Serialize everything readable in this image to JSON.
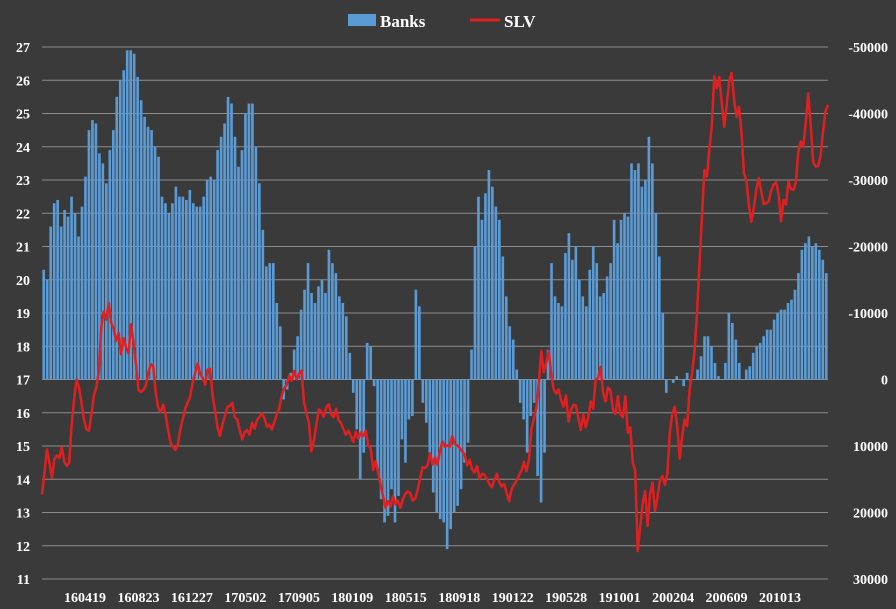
{
  "chart_data": {
    "type": "bar+line",
    "title": "",
    "legend": {
      "placement": "top-center",
      "entries": [
        "Banks",
        "SLV"
      ]
    },
    "grid": true,
    "x_tick_labels": [
      "160419",
      "160823",
      "161227",
      "170502",
      "170905",
      "180109",
      "180515",
      "180918",
      "190122",
      "190528",
      "191001",
      "200204",
      "200609",
      "201013"
    ],
    "left_axis": {
      "min": 11,
      "max": 27,
      "ticks": [
        "11",
        "12",
        "13",
        "14",
        "15",
        "16",
        "17",
        "18",
        "19",
        "20",
        "21",
        "22",
        "23",
        "24",
        "25",
        "26",
        "27"
      ],
      "baseline": 17
    },
    "right_axis": {
      "min": 30000,
      "max": -50000,
      "inverted": true,
      "ticks": [
        "-50000",
        "-40000",
        "-30000",
        "-20000",
        "-10000",
        "0",
        "10000",
        "20000",
        "30000"
      ]
    },
    "series": [
      {
        "name": "Banks",
        "axis": "left",
        "kind": "bar",
        "color": "#5b9bd5",
        "values": [
          20.3,
          20.0,
          21.6,
          22.3,
          22.4,
          21.6,
          22.1,
          21.9,
          22.5,
          22.0,
          21.3,
          22.2,
          23.1,
          24.5,
          24.8,
          24.7,
          23.8,
          23.5,
          22.9,
          23.9,
          24.5,
          25.5,
          26.0,
          26.3,
          26.9,
          26.9,
          26.8,
          26.1,
          25.4,
          24.9,
          24.6,
          24.5,
          24.0,
          23.7,
          22.5,
          22.3,
          22.0,
          22.3,
          22.8,
          22.5,
          22.5,
          22.4,
          22.7,
          22.3,
          22.2,
          22.2,
          22.5,
          23.0,
          23.1,
          23.0,
          23.9,
          24.3,
          24.7,
          25.5,
          25.3,
          24.3,
          23.4,
          23.9,
          25.0,
          25.3,
          25.3,
          24.0,
          22.9,
          21.5,
          20.4,
          20.5,
          20.5,
          19.3,
          18.6,
          16.4,
          16.7,
          17.2,
          17.9,
          18.3,
          19.1,
          19.7,
          20.5,
          19.6,
          19.3,
          19.8,
          20.0,
          19.6,
          20.9,
          20.5,
          20.2,
          19.5,
          19.3,
          18.9,
          17.8,
          16.6,
          15.5,
          14.0,
          14.8,
          18.1,
          18.0,
          16.8,
          14.3,
          13.4,
          12.7,
          12.9,
          13.7,
          12.7,
          13.5,
          15.2,
          14.5,
          15.8,
          15.9,
          19.7,
          19.2,
          16.3,
          15.7,
          14.8,
          13.6,
          13.0,
          12.8,
          12.7,
          11.9,
          12.5,
          13.0,
          13.2,
          13.7,
          14.5,
          15.1,
          17.9,
          21.0,
          22.5,
          21.8,
          22.6,
          23.3,
          22.8,
          22.2,
          21.8,
          20.7,
          19.5,
          18.6,
          18.2,
          17.3,
          16.3,
          15.8,
          14.8,
          15.9,
          16.3,
          14.1,
          13.3,
          14.8,
          17.9,
          20.5,
          19.5,
          19.3,
          19.2,
          20.8,
          21.4,
          20.6,
          21.0,
          20.0,
          19.5,
          19.2,
          20.3,
          21.0,
          20.5,
          19.5,
          19.6,
          20.1,
          20.5,
          21.8,
          21.1,
          21.8,
          22.0,
          21.9,
          23.5,
          23.3,
          23.5,
          22.8,
          23.0,
          24.3,
          23.5,
          22.0,
          20.7,
          19.0,
          16.6,
          17.0,
          16.9,
          17.1,
          17.0,
          16.8,
          17.2,
          16.9,
          17.0,
          17.3,
          17.7,
          18.3,
          18.3,
          18.0,
          17.5,
          17.1,
          17.0,
          17.5,
          19.0,
          18.7,
          18.2,
          17.5,
          17.0,
          17.3,
          17.4,
          17.8,
          18.0,
          18.1,
          18.3,
          18.5,
          18.5,
          18.8,
          19.0,
          19.1,
          19.1,
          19.3,
          19.4,
          19.7,
          20.2,
          20.9,
          21.1,
          21.3,
          21.0,
          21.1,
          20.9,
          20.6,
          20.2
        ]
      },
      {
        "name": "SLV",
        "axis": "right",
        "kind": "line",
        "color": "#e02020",
        "values": [
          17300,
          14000,
          10500,
          12500,
          14800,
          12000,
          11400,
          11800,
          10200,
          12300,
          13000,
          12500,
          6800,
          3000,
          0,
          1200,
          3600,
          6000,
          7500,
          7700,
          5200,
          2400,
          1200,
          -1200,
          -8000,
          -10200,
          -9000,
          -11500,
          -8500,
          -7600,
          -5800,
          -7000,
          -3800,
          -6200,
          -4800,
          -3900,
          -8300,
          -5600,
          -2400,
          1500,
          1900,
          1600,
          900,
          -1000,
          -2300,
          -2000,
          2000,
          4200,
          4900,
          3800,
          5300,
          7500,
          9500,
          10100,
          10600,
          9700,
          7400,
          5900,
          4300,
          3400,
          2500,
          400,
          -1000,
          -2400,
          -800,
          -300,
          800,
          -1500,
          -1600,
          2400,
          4600,
          7200,
          8500,
          6800,
          5500,
          4100,
          4000,
          3500,
          5700,
          6000,
          7700,
          9000,
          7900,
          7600,
          8300,
          6500,
          7400,
          6100,
          5600,
          5100,
          5800,
          7100,
          6800,
          7500,
          6400,
          5200,
          4300,
          2400,
          1300,
          800,
          -600,
          200,
          -1300,
          0,
          -900,
          -1300,
          3400,
          5100,
          6500,
          10800,
          9200,
          6800,
          4500,
          4800,
          5600,
          4200,
          3700,
          5200,
          5700,
          4400,
          6100,
          6600,
          7500,
          8300,
          7700,
          8500,
          9400,
          7800,
          8900,
          8000,
          8500,
          7700,
          9900,
          10400,
          13600,
          12300,
          14000,
          15900,
          17600,
          19300,
          18300,
          19100,
          17500,
          18800,
          18200,
          19300,
          18000,
          17200,
          16800,
          17100,
          18200,
          17900,
          16600,
          14800,
          13200,
          13300,
          12900,
          11100,
          12800,
          11700,
          12800,
          10800,
          9300,
          10100,
          9900,
          10100,
          8500,
          9700,
          9900,
          10300,
          10800,
          11300,
          12900,
          12100,
          13500,
          14000,
          13000,
          14900,
          14200,
          14300,
          15000,
          15700,
          16200,
          15100,
          14200,
          15400,
          16100,
          15700,
          17100,
          18300,
          16500,
          15800,
          15200,
          14400,
          13700,
          12400,
          13800,
          12100,
          7500,
          5900,
          4300,
          600,
          -4300,
          -1100,
          -2500,
          -4300,
          -900,
          1500,
          2100,
          1500,
          3100,
          4100,
          2400,
          6300,
          4600,
          3800,
          3900,
          5800,
          7600,
          5300,
          7200,
          5700,
          3300,
          4400,
          0,
          -200,
          -1900,
          2000,
          3300,
          1200,
          1700,
          4600,
          5200,
          2500,
          5200,
          5700,
          2500,
          8000,
          7200,
          12500,
          13700,
          25800,
          22300,
          18700,
          16800,
          22000,
          17200,
          15500,
          19800,
          17700,
          15200,
          14500,
          15800,
          14200,
          8000,
          5200,
          4100,
          7000,
          11900,
          8500,
          6000,
          7000,
          1600,
          -900,
          -4200,
          -9800,
          -17300,
          -24500,
          -31500,
          -30500,
          -34600,
          -38200,
          -45600,
          -43800,
          -45500,
          -41600,
          -38000,
          -41200,
          -44800,
          -46100,
          -42100,
          -39500,
          -41000,
          -37200,
          -31000,
          -29900,
          -26200,
          -23700,
          -25800,
          -28600,
          -30300,
          -28200,
          -26400,
          -26500,
          -26800,
          -28400,
          -29300,
          -29700,
          -27900,
          -23800,
          -27000,
          -26300,
          -29800,
          -28700,
          -28500,
          -29700,
          -34300,
          -35800,
          -35000,
          -38600,
          -43000,
          -38300,
          -32700,
          -32000,
          -32100,
          -33600,
          -37300,
          -40400,
          -41300
        ]
      }
    ]
  }
}
